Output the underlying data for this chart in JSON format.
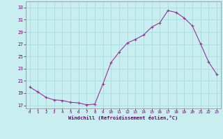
{
  "x": [
    0,
    1,
    2,
    3,
    4,
    5,
    6,
    7,
    8,
    9,
    10,
    11,
    12,
    13,
    14,
    15,
    16,
    17,
    18,
    19,
    20,
    21,
    22,
    23
  ],
  "y": [
    20.0,
    19.2,
    18.3,
    17.9,
    17.8,
    17.5,
    17.4,
    17.1,
    17.2,
    20.5,
    24.0,
    25.7,
    27.2,
    27.8,
    28.5,
    29.8,
    30.5,
    32.5,
    32.2,
    31.3,
    30.0,
    27.1,
    24.1,
    22.1
  ],
  "xlim": [
    -0.5,
    23.5
  ],
  "ylim": [
    16.5,
    34.0
  ],
  "yticks": [
    17,
    19,
    21,
    23,
    25,
    27,
    29,
    31,
    33
  ],
  "xticks": [
    0,
    1,
    2,
    3,
    4,
    5,
    6,
    7,
    8,
    9,
    10,
    11,
    12,
    13,
    14,
    15,
    16,
    17,
    18,
    19,
    20,
    21,
    22,
    23
  ],
  "xlabel": "Windchill (Refroidissement éolien,°C)",
  "line_color": "#993399",
  "marker": "+",
  "background_color": "#c8eef0",
  "grid_color": "#aadddd",
  "tick_label_color": "#660066",
  "xlabel_color": "#660066",
  "spine_color": "#888888"
}
